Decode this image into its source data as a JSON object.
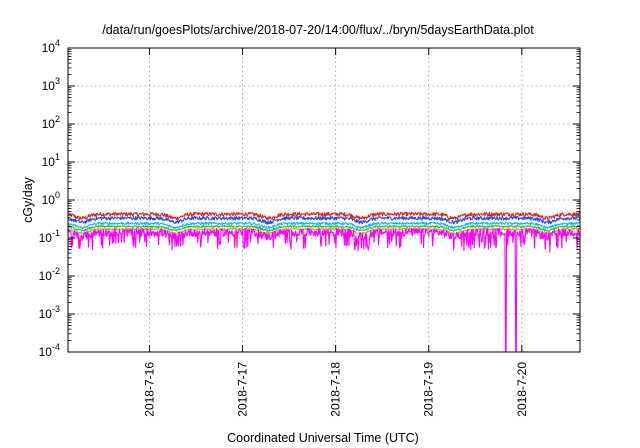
{
  "chart_data": {
    "type": "line",
    "title": "/data/run/goesPlots/archive/2018-07-20/14:00/flux/../bryn/5daysEarthData.plot",
    "xlabel": "Coordinated Universal Time (UTC)",
    "ylabel": "cGy/day",
    "y_scale": "log",
    "ylim": [
      0.0001,
      10000
    ],
    "y_ticks": [
      {
        "base": "10",
        "exp": "-4"
      },
      {
        "base": "10",
        "exp": "-3"
      },
      {
        "base": "10",
        "exp": "-2"
      },
      {
        "base": "10",
        "exp": "-1"
      },
      {
        "base": "10",
        "exp": "0"
      },
      {
        "base": "10",
        "exp": "1"
      },
      {
        "base": "10",
        "exp": "2"
      },
      {
        "base": "10",
        "exp": "3"
      },
      {
        "base": "10",
        "exp": "4"
      }
    ],
    "xlim": [
      "2018-07-15 03:00",
      "2018-07-20 15:00"
    ],
    "x_ticks": [
      "2018-7-16",
      "2018-7-17",
      "2018-7-18",
      "2018-7-19",
      "2018-7-20"
    ],
    "grid": true,
    "legend": false,
    "series": [
      {
        "color": "#e8231f",
        "level": 0.42,
        "noise": 0.12
      },
      {
        "color": "#1f4fe8",
        "level": 0.33,
        "noise": 0.11
      },
      {
        "color": "#1fb0e0",
        "level": 0.24,
        "noise": 0.07
      },
      {
        "color": "#1fc24a",
        "level": 0.2,
        "noise": 0.06
      },
      {
        "color": "#e0a01f",
        "level": 0.17,
        "noise": 0.05
      },
      {
        "color": "#ff00ff",
        "level": 0.14,
        "noise": 0.25
      }
    ],
    "dropouts": [
      {
        "series_color": "#ff00ff",
        "start": "2018-07-19 19:40",
        "end": "2018-07-19 20:00",
        "value": 0.0001
      },
      {
        "series_color": "#ff00ff",
        "start": "2018-07-19 22:20",
        "end": "2018-07-19 22:40",
        "value": 0.0001
      }
    ]
  }
}
